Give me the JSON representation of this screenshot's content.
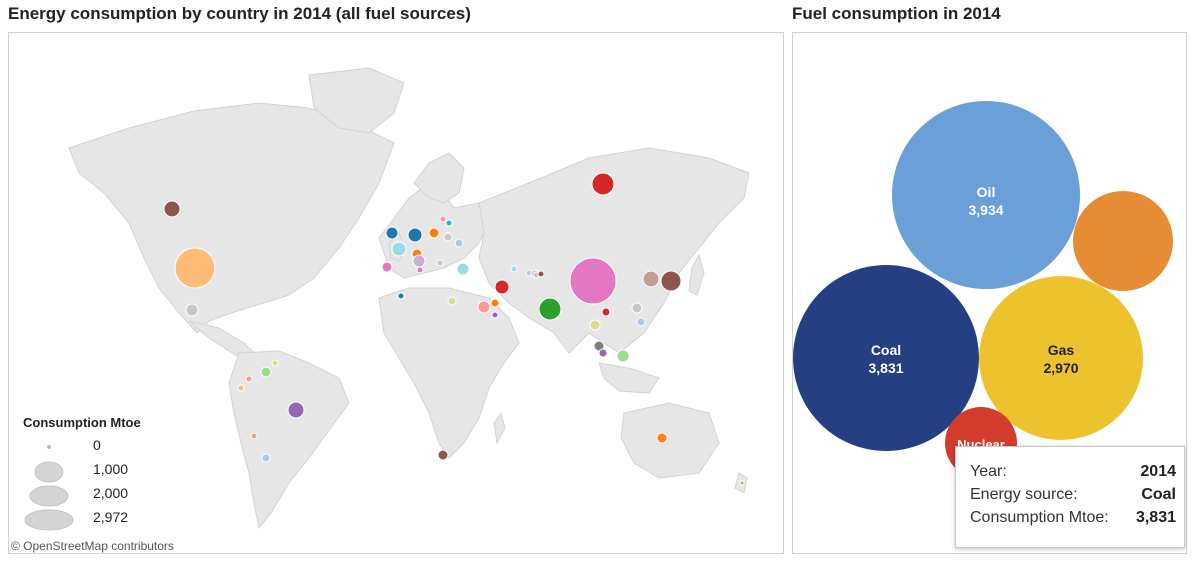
{
  "titles": {
    "map": "Energy consumption by country in 2014 (all fuel sources)",
    "bubbles": "Fuel consumption in 2014"
  },
  "map": {
    "attribution": "© OpenStreetMap contributors",
    "legend": {
      "title": "Consumption Mtoe",
      "entries": [
        {
          "label": "0",
          "value": 0
        },
        {
          "label": "1,000",
          "value": 1000
        },
        {
          "label": "2,000",
          "value": 2000
        },
        {
          "label": "2,972",
          "value": 2972
        }
      ]
    },
    "colors": {
      "land": "#e6e6e6",
      "border": "#cfcfcf",
      "water": "#ffffff"
    }
  },
  "fuel": {
    "bubbles": [
      {
        "name": "Oil",
        "value": "3,934",
        "color": "#6a9fd8"
      },
      {
        "name": "Coal",
        "value": "3,831",
        "color": "#243f82"
      },
      {
        "name": "Gas",
        "value": "2,970",
        "color": "#ecc22e"
      },
      {
        "name": "",
        "value": "",
        "color": "#e58c35"
      },
      {
        "name": "Nuclear",
        "value": "",
        "color": "#d23c2c"
      }
    ]
  },
  "tooltip": {
    "rows": [
      {
        "key": "Year:",
        "value": "2014"
      },
      {
        "key": "Energy source:",
        "value": "Coal"
      },
      {
        "key": "Consumption Mtoe:",
        "value": "3,831"
      }
    ]
  }
}
